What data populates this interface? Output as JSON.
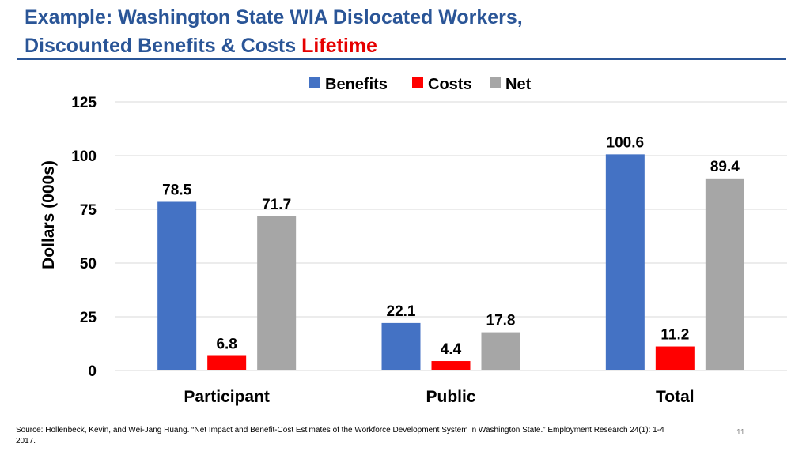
{
  "slide": {
    "title_line1": "Example: Washington State WIA Dislocated Workers,",
    "title_line2_prefix": "Discounted Benefits & Costs ",
    "title_line2_highlight": "Lifetime",
    "source": "Source: Hollenbeck, Kevin, and Wei-Jang Huang. “Net Impact and Benefit-Cost Estimates of the Workforce Development System in Washington State.” Employment Research 24(1): 1-4 2017.",
    "page_number": "11"
  },
  "colors": {
    "title": "#2a5597",
    "highlight": "#e60000",
    "benefits": "#4472c4",
    "costs": "#ff0000",
    "net": "#a6a6a6",
    "grid": "#d9d9d9"
  },
  "chart_data": {
    "type": "bar",
    "categories": [
      "Participant",
      "Public",
      "Total"
    ],
    "series": [
      {
        "name": "Benefits",
        "values": [
          78.5,
          22.1,
          100.6
        ],
        "labels": [
          "78.5",
          "22.1",
          "100.6"
        ]
      },
      {
        "name": "Costs",
        "values": [
          6.8,
          4.4,
          11.2
        ],
        "labels": [
          "6.8",
          "4.4",
          "11.2"
        ]
      },
      {
        "name": "Net",
        "values": [
          71.7,
          17.8,
          89.4
        ],
        "labels": [
          "71.7",
          "17.8",
          "89.4"
        ]
      }
    ],
    "ylabel": "Dollars (000s)",
    "ylim": [
      0,
      125
    ],
    "yticks": [
      0,
      25,
      50,
      75,
      100,
      125
    ],
    "grid": true,
    "legend_position": "top"
  }
}
